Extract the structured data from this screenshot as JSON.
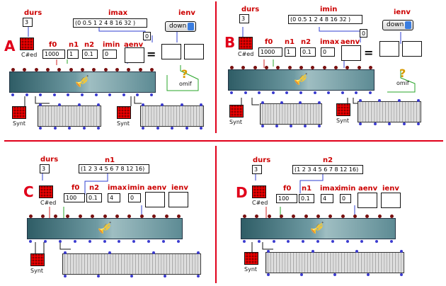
{
  "separator_color": "#e0001a",
  "panels": [
    {
      "letter": "A",
      "top_labels": [
        {
          "key": "durs",
          "text": "durs"
        },
        {
          "key": "imax",
          "text": "imax"
        },
        {
          "key": "ienv",
          "text": "ienv"
        }
      ],
      "durs_value": "3",
      "list_value": "(0 0.5 1 2  4 8 16 32 )",
      "dropdown_value": "down",
      "param_labels": [
        "f0",
        "n1",
        "n2",
        "imin",
        "aenv"
      ],
      "param_values": [
        "1000",
        "1",
        "0.1",
        "0"
      ],
      "chord_label": "C#ed",
      "small_value": "0",
      "omif_label": "omif",
      "synt_label": "Synt"
    },
    {
      "letter": "B",
      "top_labels": [
        {
          "key": "durs",
          "text": "durs"
        },
        {
          "key": "imin",
          "text": "imin"
        },
        {
          "key": "ienv",
          "text": "ienv"
        }
      ],
      "durs_value": "3",
      "list_value": "(0 0.5 1 2  4 8 16 32 )",
      "dropdown_value": "down",
      "param_labels": [
        "f0",
        "n1",
        "n2",
        "imax",
        "aenv"
      ],
      "param_values": [
        "1000",
        "1",
        "0.1",
        "0"
      ],
      "chord_label": "C#ed",
      "small_value": "0",
      "omif_label": "omif",
      "synt_label": "Synt"
    },
    {
      "letter": "C",
      "top_labels": [
        {
          "key": "durs",
          "text": "durs"
        },
        {
          "key": "n1",
          "text": "n1"
        }
      ],
      "durs_value": "3",
      "list_value": "(1 2 3 4 5 6 7 8 12 16)",
      "param_labels": [
        "f0",
        "n2",
        "imax",
        "imin",
        "aenv",
        "ienv"
      ],
      "param_values": [
        "100",
        "0.1",
        "4",
        "0"
      ],
      "chord_label": "C#ed",
      "synt_label": "Synt"
    },
    {
      "letter": "D",
      "top_labels": [
        {
          "key": "durs",
          "text": "durs"
        },
        {
          "key": "n2",
          "text": "n2"
        }
      ],
      "durs_value": "3",
      "list_value": "(1 2 3 4 5 6 7 8 12 16)",
      "param_labels": [
        "f0",
        "n1",
        "imax",
        "imin",
        "aenv",
        "ienv"
      ],
      "param_values": [
        "100",
        "0.1",
        "4",
        "0"
      ],
      "chord_label": "C#ed",
      "synt_label": "Synt"
    }
  ]
}
